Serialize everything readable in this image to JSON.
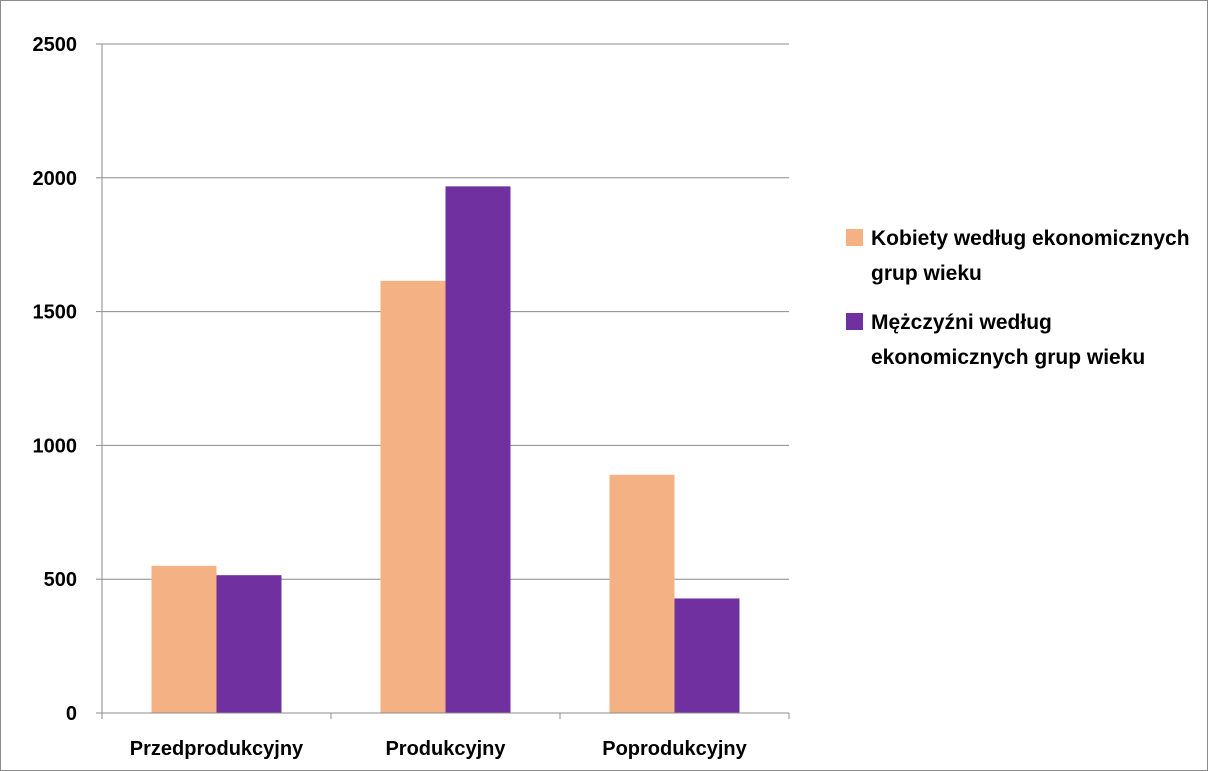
{
  "chart_data": {
    "type": "bar",
    "categories": [
      "Przedprodukcyjny",
      "Produkcyjny",
      "Poprodukcyjny"
    ],
    "series": [
      {
        "name": "Kobiety według ekonomicznych grup wieku",
        "values": [
          550,
          1615,
          890
        ],
        "color": "#f4b183"
      },
      {
        "name": "Mężczyźni według ekonomicznych grup wieku",
        "values": [
          515,
          1968,
          428
        ],
        "color": "#7030a0"
      }
    ],
    "ylim": [
      0,
      2500
    ],
    "yticks": [
      "0",
      "500",
      "1000",
      "1500",
      "2000",
      "2500"
    ],
    "grid": true,
    "legend_position": "right"
  }
}
